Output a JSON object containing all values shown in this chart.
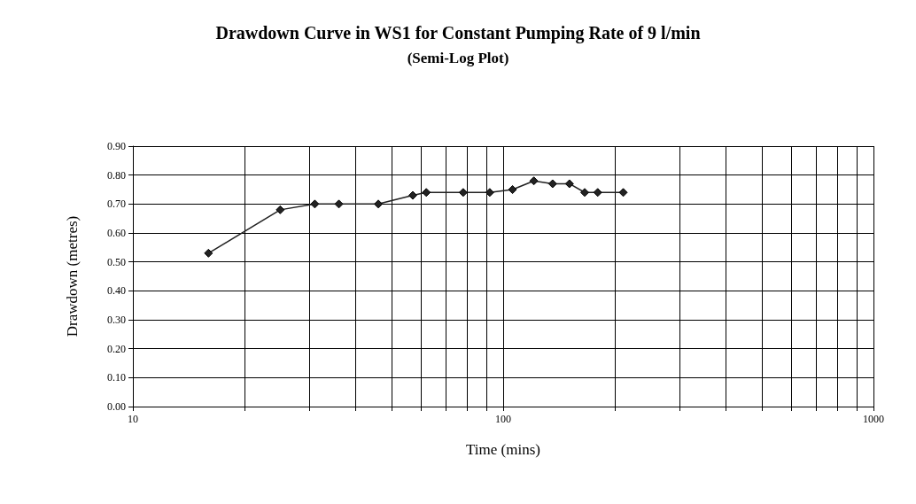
{
  "chart_data": {
    "type": "line",
    "title": "Drawdown Curve in WS1 for Constant Pumping Rate of 9 l/min",
    "subtitle": "(Semi-Log Plot)",
    "xlabel": "Time (mins)",
    "ylabel": "Drawdown (metres)",
    "x": [
      16,
      25,
      31,
      36,
      46,
      57,
      62,
      78,
      92,
      106,
      121,
      136,
      151,
      166,
      180,
      211
    ],
    "series": [
      {
        "color": "#222222",
        "values": [
          0.53,
          0.68,
          0.7,
          0.7,
          0.7,
          0.73,
          0.74,
          0.74,
          0.74,
          0.75,
          0.78,
          0.77,
          0.77,
          0.74,
          0.74,
          0.74
        ]
      }
    ],
    "log": "x",
    "marker": "diamond",
    "line_style": "solid",
    "grid": true,
    "xlim": [
      10,
      1000
    ],
    "xticks": [
      10,
      {
        "value": 20,
        "label": null
      },
      {
        "value": 30,
        "label": null
      },
      {
        "value": 40,
        "label": null
      },
      {
        "value": 50,
        "label": null
      },
      {
        "value": 60,
        "label": null
      },
      {
        "value": 70,
        "label": null
      },
      {
        "value": 80,
        "label": null
      },
      {
        "value": 90,
        "label": null
      },
      100,
      {
        "value": 200,
        "label": null
      },
      {
        "value": 300,
        "label": null
      },
      {
        "value": 400,
        "label": null
      },
      {
        "value": 500,
        "label": null
      },
      {
        "value": 600,
        "label": null
      },
      {
        "value": 700,
        "label": null
      },
      {
        "value": 800,
        "label": null
      },
      {
        "value": 900,
        "label": null
      },
      1000
    ],
    "ylim": [
      0,
      0.9
    ],
    "yticks": [
      {
        "value": 0,
        "label": "0.00"
      },
      {
        "value": 0.1,
        "label": "0.10"
      },
      {
        "value": 0.2,
        "label": "0.20"
      },
      {
        "value": 0.3,
        "label": "0.30"
      },
      {
        "value": 0.4,
        "label": "0.40"
      },
      {
        "value": 0.5,
        "label": "0.50"
      },
      {
        "value": 0.6,
        "label": "0.60"
      },
      {
        "value": 0.7,
        "label": "0.70"
      },
      {
        "value": 0.8,
        "label": "0.80"
      },
      {
        "value": 0.9,
        "label": "0.90"
      }
    ]
  }
}
